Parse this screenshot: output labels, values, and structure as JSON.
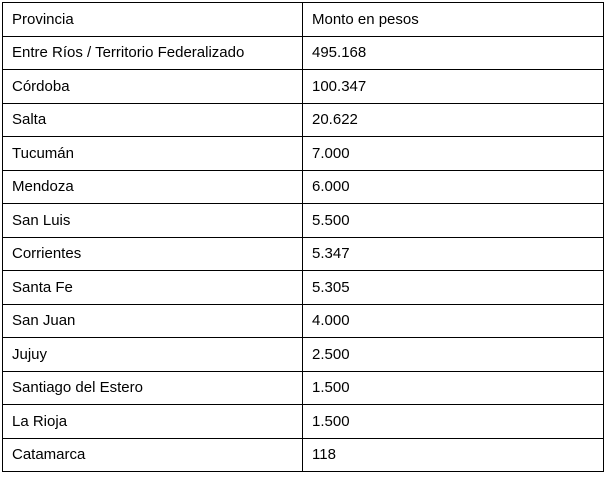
{
  "table": {
    "headers": [
      "Provincia",
      "Monto en pesos"
    ],
    "rows": [
      [
        "Entre Ríos / Territorio Federalizado",
        "495.168"
      ],
      [
        "Córdoba",
        "100.347"
      ],
      [
        "Salta",
        "20.622"
      ],
      [
        "Tucumán",
        "7.000"
      ],
      [
        "Mendoza",
        "6.000"
      ],
      [
        "San Luis",
        "5.500"
      ],
      [
        "Corrientes",
        "5.347"
      ],
      [
        "Santa Fe",
        "5.305"
      ],
      [
        "San Juan",
        "4.000"
      ],
      [
        "Jujuy",
        "2.500"
      ],
      [
        "Santiago del Estero",
        "1.500"
      ],
      [
        "La Rioja",
        "1.500"
      ],
      [
        "Catamarca",
        "118"
      ]
    ]
  }
}
